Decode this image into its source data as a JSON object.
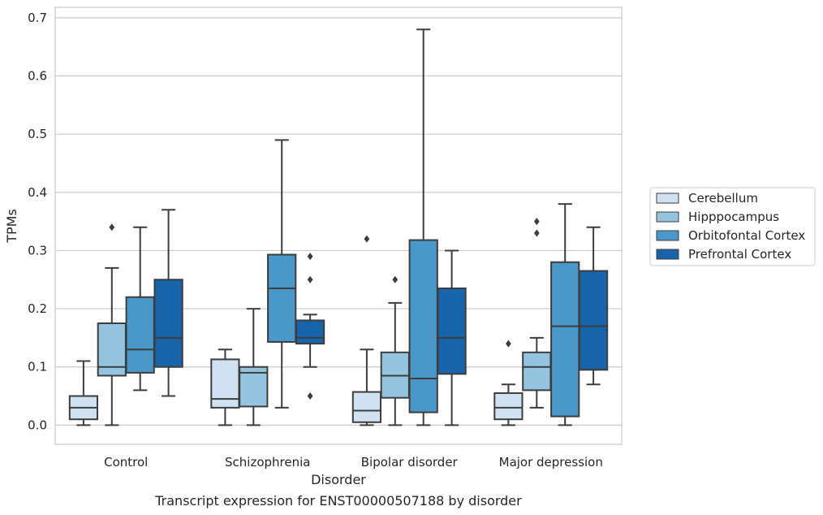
{
  "chart_data": {
    "type": "box",
    "caption": "Transcript expression for ENST00000507188 by disorder",
    "xlabel": "Disorder",
    "ylabel": "TPMs",
    "ylim": [
      -0.033,
      0.718
    ],
    "yticks": [
      "0.0",
      "0.1",
      "0.2",
      "0.3",
      "0.4",
      "0.5",
      "0.6",
      "0.7"
    ],
    "grid": true,
    "legend_position": "right",
    "categories": [
      "Control",
      "Schizophrenia",
      "Bipolar disorder",
      "Major depression"
    ],
    "series": [
      {
        "name": "Cerebellum",
        "color": "#d0e1f2",
        "boxes": [
          {
            "whislo": 0.0,
            "q1": 0.01,
            "med": 0.03,
            "q3": 0.05,
            "whishi": 0.11,
            "fliers": []
          },
          {
            "whislo": 0.0,
            "q1": 0.03,
            "med": 0.045,
            "q3": 0.113,
            "whishi": 0.13,
            "fliers": []
          },
          {
            "whislo": 0.0,
            "q1": 0.005,
            "med": 0.025,
            "q3": 0.057,
            "whishi": 0.13,
            "fliers": [
              0.32
            ]
          },
          {
            "whislo": 0.0,
            "q1": 0.01,
            "med": 0.03,
            "q3": 0.055,
            "whishi": 0.07,
            "fliers": [
              0.14
            ]
          }
        ]
      },
      {
        "name": "Hipppocampus",
        "color": "#94c4df",
        "boxes": [
          {
            "whislo": 0.0,
            "q1": 0.085,
            "med": 0.1,
            "q3": 0.175,
            "whishi": 0.27,
            "fliers": [
              0.34
            ]
          },
          {
            "whislo": 0.0,
            "q1": 0.032,
            "med": 0.09,
            "q3": 0.1,
            "whishi": 0.2,
            "fliers": []
          },
          {
            "whislo": 0.0,
            "q1": 0.047,
            "med": 0.085,
            "q3": 0.125,
            "whishi": 0.21,
            "fliers": [
              0.25
            ]
          },
          {
            "whislo": 0.03,
            "q1": 0.06,
            "med": 0.1,
            "q3": 0.125,
            "whishi": 0.15,
            "fliers": [
              0.33,
              0.35
            ]
          }
        ]
      },
      {
        "name": "Orbitofontal Cortex",
        "color": "#4a98c9",
        "boxes": [
          {
            "whislo": 0.06,
            "q1": 0.09,
            "med": 0.13,
            "q3": 0.22,
            "whishi": 0.34,
            "fliers": []
          },
          {
            "whislo": 0.03,
            "q1": 0.143,
            "med": 0.235,
            "q3": 0.293,
            "whishi": 0.49,
            "fliers": []
          },
          {
            "whislo": 0.0,
            "q1": 0.022,
            "med": 0.08,
            "q3": 0.318,
            "whishi": 0.68,
            "fliers": []
          },
          {
            "whislo": 0.0,
            "q1": 0.015,
            "med": 0.17,
            "q3": 0.28,
            "whishi": 0.38,
            "fliers": []
          }
        ]
      },
      {
        "name": "Prefrontal Cortex",
        "color": "#1764ab",
        "boxes": [
          {
            "whislo": 0.05,
            "q1": 0.1,
            "med": 0.15,
            "q3": 0.25,
            "whishi": 0.37,
            "fliers": []
          },
          {
            "whislo": 0.1,
            "q1": 0.14,
            "med": 0.15,
            "q3": 0.18,
            "whishi": 0.19,
            "fliers": [
              0.05,
              0.25,
              0.29
            ]
          },
          {
            "whislo": 0.0,
            "q1": 0.088,
            "med": 0.15,
            "q3": 0.235,
            "whishi": 0.3,
            "fliers": []
          },
          {
            "whislo": 0.07,
            "q1": 0.095,
            "med": 0.17,
            "q3": 0.265,
            "whishi": 0.34,
            "fliers": []
          }
        ]
      }
    ]
  }
}
